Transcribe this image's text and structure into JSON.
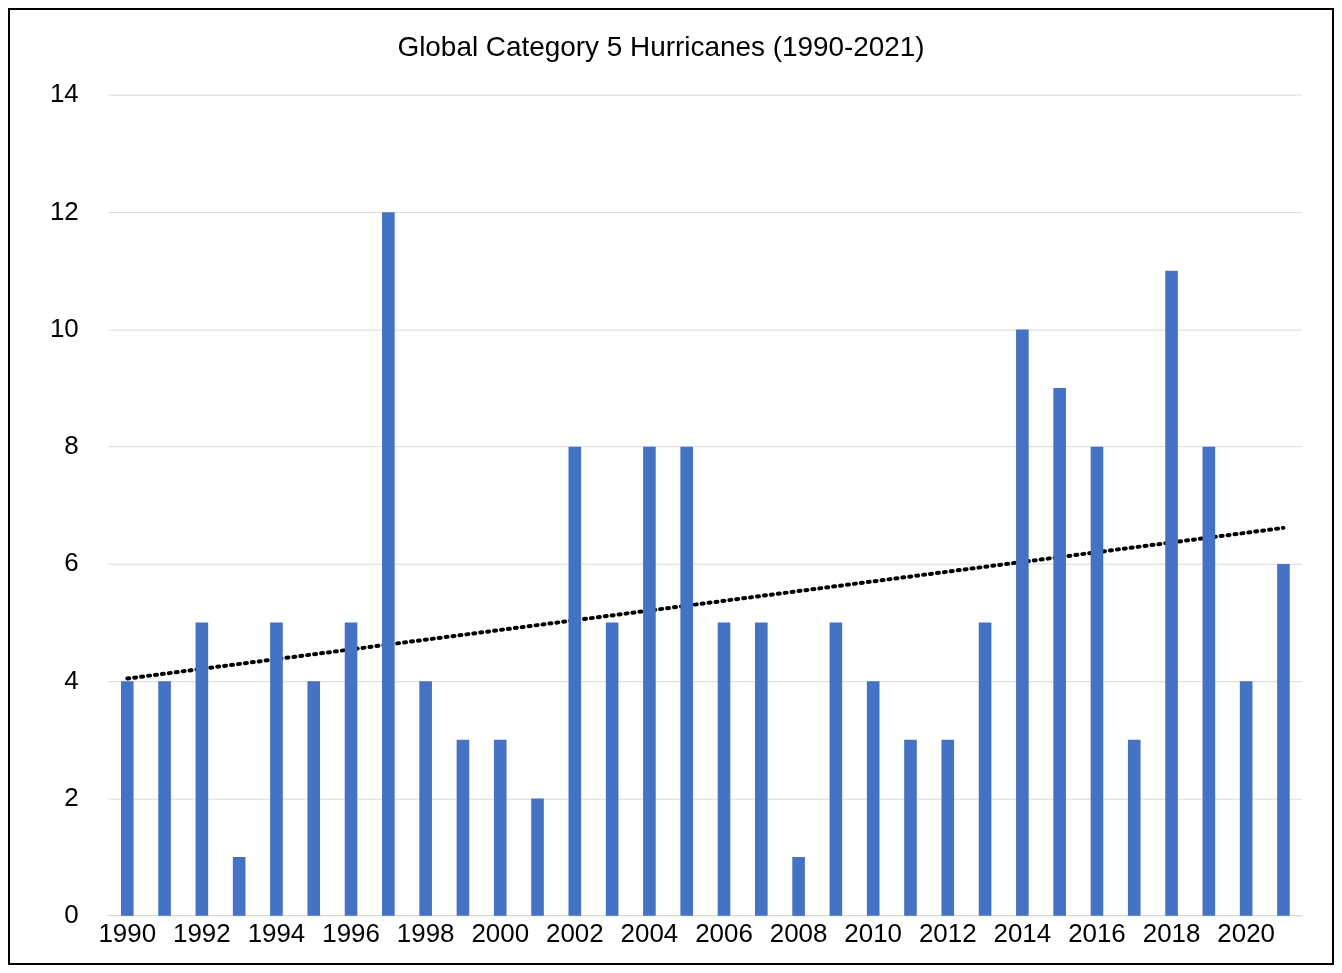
{
  "chart_data": {
    "type": "bar",
    "title": "Global Category 5 Hurricanes (1990-2021)",
    "x": [
      1990,
      1991,
      1992,
      1993,
      1994,
      1995,
      1996,
      1997,
      1998,
      1999,
      2000,
      2001,
      2002,
      2003,
      2004,
      2005,
      2006,
      2007,
      2008,
      2009,
      2010,
      2011,
      2012,
      2013,
      2014,
      2015,
      2016,
      2017,
      2018,
      2019,
      2020,
      2021
    ],
    "series": [
      {
        "color": "#4472c4",
        "values": [
          4,
          4,
          5,
          1,
          5,
          4,
          5,
          12,
          4,
          3,
          3,
          2,
          8,
          5,
          8,
          8,
          5,
          5,
          1,
          5,
          4,
          3,
          3,
          5,
          10,
          9,
          8,
          3,
          11,
          8,
          4,
          6
        ]
      },
      {
        "type": "line",
        "color": "#000000",
        "x": [
          1990,
          2021
        ],
        "values": [
          4.05,
          6.62
        ],
        "line_style": "dotted",
        "marker": "none"
      }
    ],
    "xlim": [
      1989.5,
      2021.5
    ],
    "xticks": [
      1990,
      1992,
      1994,
      1996,
      1998,
      2000,
      2002,
      2004,
      2006,
      2008,
      2010,
      2012,
      2014,
      2016,
      2018,
      2020
    ],
    "ylim": [
      0,
      14
    ],
    "yticks": [
      0,
      2,
      4,
      6,
      8,
      10,
      12,
      14
    ],
    "grid": "y",
    "legend": false
  }
}
